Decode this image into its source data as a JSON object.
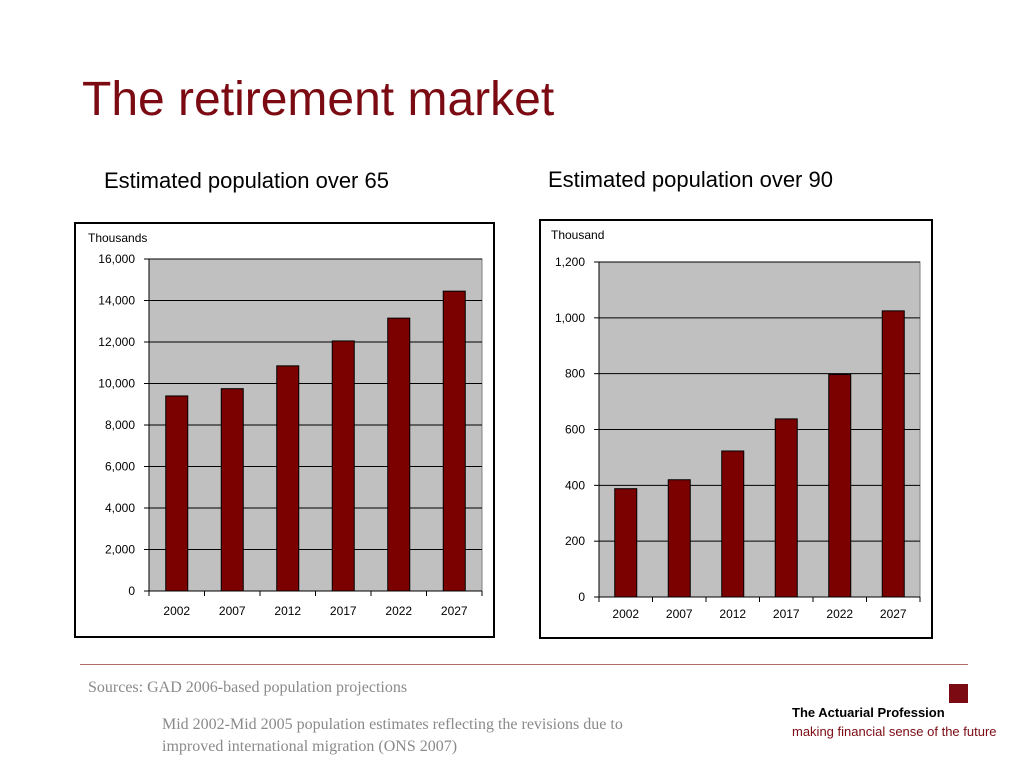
{
  "title": "The retirement market",
  "footer": {
    "sources": "Sources: GAD 2006-based population projections",
    "note": "Mid 2002-Mid 2005 population estimates reflecting the revisions due to improved international migration (ONS 2007)",
    "org_name": "The Actuarial Profession",
    "tagline": "making financial sense of the future"
  },
  "colors": {
    "accent": "#7b0a12",
    "bar_fill": "#7b0000",
    "plot_bg": "#c0c0c0",
    "footer_text": "#8a8a8a"
  },
  "chart_data": [
    {
      "type": "bar",
      "title": "Estimated population over 65",
      "unit_label": "Thousands",
      "categories": [
        "2002",
        "2007",
        "2012",
        "2017",
        "2022",
        "2027"
      ],
      "values": [
        9400,
        9750,
        10850,
        12050,
        13150,
        14450
      ],
      "ylim": [
        0,
        16000
      ],
      "yticks": [
        "0",
        "2,000",
        "4,000",
        "6,000",
        "8,000",
        "10,000",
        "12,000",
        "14,000",
        "16,000"
      ],
      "ytick_values": [
        0,
        2000,
        4000,
        6000,
        8000,
        10000,
        12000,
        14000,
        16000
      ],
      "grid": true,
      "legend": "none"
    },
    {
      "type": "bar",
      "title": "Estimated population over 90",
      "unit_label": "Thousand",
      "categories": [
        "2002",
        "2007",
        "2012",
        "2017",
        "2022",
        "2027"
      ],
      "values": [
        388,
        420,
        523,
        638,
        797,
        1025
      ],
      "ylim": [
        0,
        1200
      ],
      "yticks": [
        "0",
        "200",
        "400",
        "600",
        "800",
        "1,000",
        "1,200"
      ],
      "ytick_values": [
        0,
        200,
        400,
        600,
        800,
        1000,
        1200
      ],
      "grid": true,
      "legend": "none"
    }
  ]
}
